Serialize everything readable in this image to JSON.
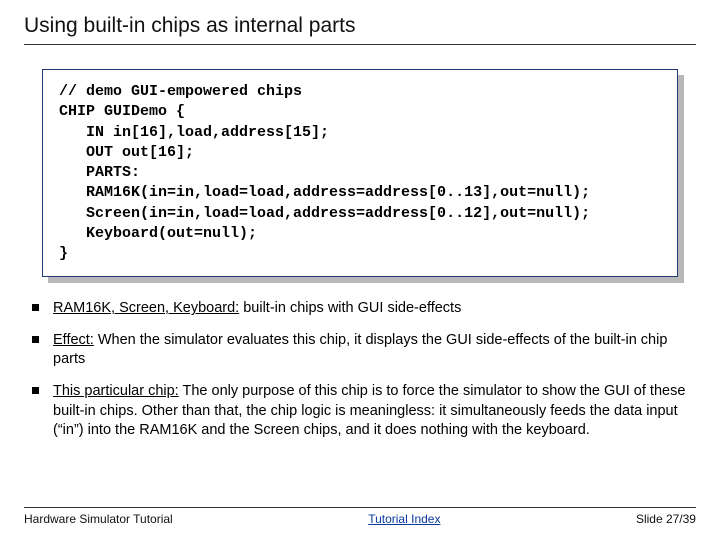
{
  "title": "Using built-in chips as internal parts",
  "code": {
    "l1": "// demo GUI-empowered chips",
    "l2": "CHIP GUIDemo {",
    "l3": "   IN in[16],load,address[15];",
    "l4": "   OUT out[16];",
    "l5": "   PARTS:",
    "l6": "   RAM16K(in=in,load=load,address=address[0..13],out=null);",
    "l7": "   Screen(in=in,load=load,address=address[0..12],out=null);",
    "l8": "   Keyboard(out=null);",
    "l9": "}"
  },
  "bullets": {
    "b1_u": "RAM16K, Screen, Keyboard:",
    "b1_r": " built-in chips with GUI side-effects",
    "b2_u": "Effect:",
    "b2_r": " When the simulator evaluates this chip, it displays the GUI side-effects of the built-in chip parts",
    "b3_u": "This particular chip:",
    "b3_r": " The only purpose of this chip is to force the simulator to show the GUI of these built-in chips. Other than that, the chip logic is meaningless: it simultaneously feeds the data input (“in”) into the RAM16K and the Screen chips, and it does nothing with the keyboard."
  },
  "footer": {
    "left": "Hardware Simulator Tutorial",
    "center": "Tutorial Index",
    "right": "Slide 27/39"
  }
}
